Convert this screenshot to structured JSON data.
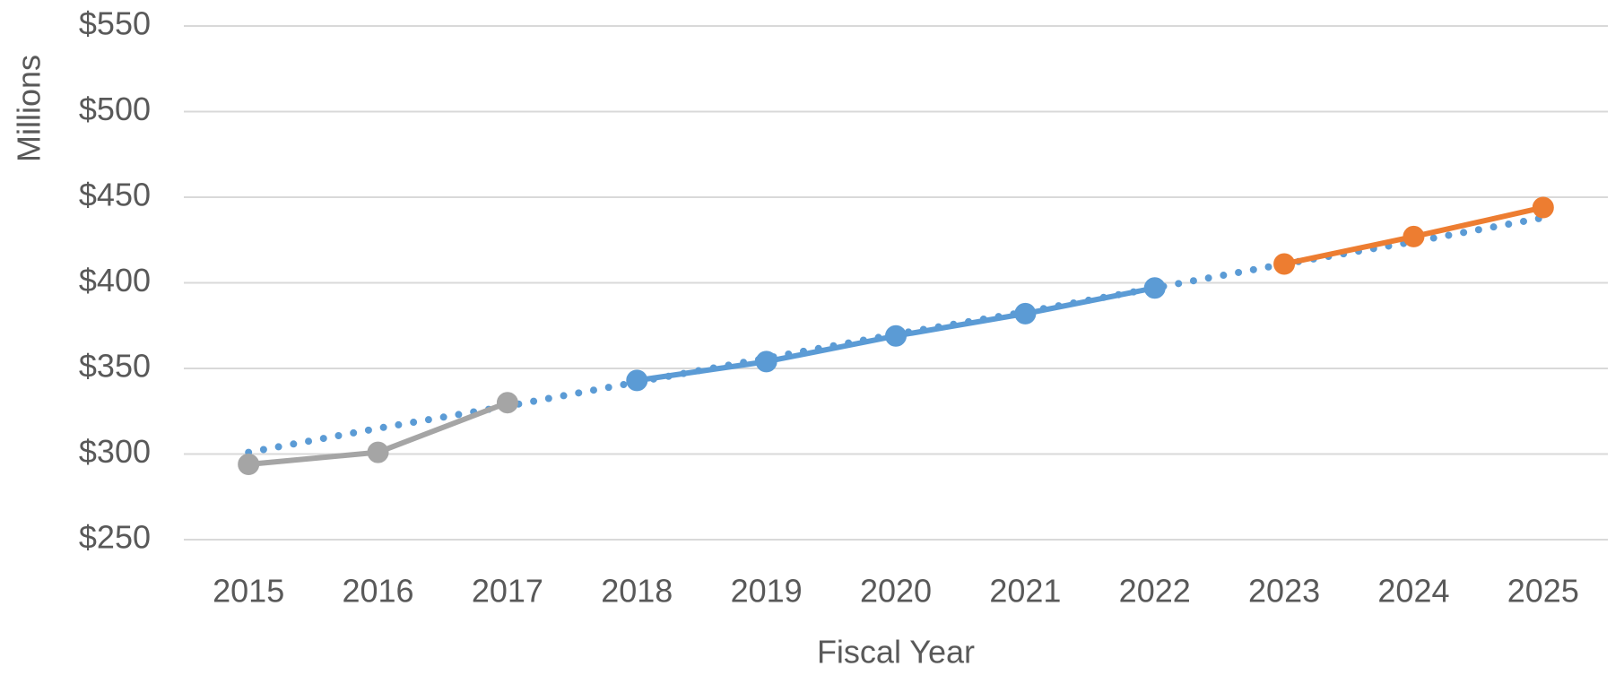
{
  "chart_data": {
    "type": "line",
    "x_label": "Fiscal Year",
    "y_label": "Millions",
    "categories": [
      "2015",
      "2016",
      "2017",
      "2018",
      "2019",
      "2020",
      "2021",
      "2022",
      "2023",
      "2024",
      "2025"
    ],
    "series": [
      {
        "color": "#5b9bd5",
        "style": "dotted",
        "markers": false,
        "values": [
          301,
          315,
          328,
          342,
          356,
          370,
          383,
          397,
          411,
          424,
          438
        ]
      },
      {
        "color": "#a5a5a5",
        "style": "solid",
        "markers": true,
        "values": [
          294,
          301,
          330,
          null,
          null,
          null,
          null,
          null,
          null,
          null,
          null
        ]
      },
      {
        "color": "#5b9bd5",
        "style": "solid",
        "markers": true,
        "values": [
          null,
          null,
          null,
          343,
          354,
          369,
          382,
          397,
          null,
          null,
          null
        ]
      },
      {
        "color": "#ed7d31",
        "style": "solid",
        "markers": true,
        "values": [
          null,
          null,
          null,
          null,
          null,
          null,
          null,
          null,
          411,
          427,
          444
        ]
      }
    ],
    "ylim": [
      250,
      550
    ],
    "yticks": [
      {
        "value": 250,
        "label": "$250"
      },
      {
        "value": 300,
        "label": "$300"
      },
      {
        "value": 350,
        "label": "$350"
      },
      {
        "value": 400,
        "label": "$400"
      },
      {
        "value": 450,
        "label": "$450"
      },
      {
        "value": 500,
        "label": "$500"
      },
      {
        "value": 550,
        "label": "$550"
      }
    ],
    "grid": true
  }
}
